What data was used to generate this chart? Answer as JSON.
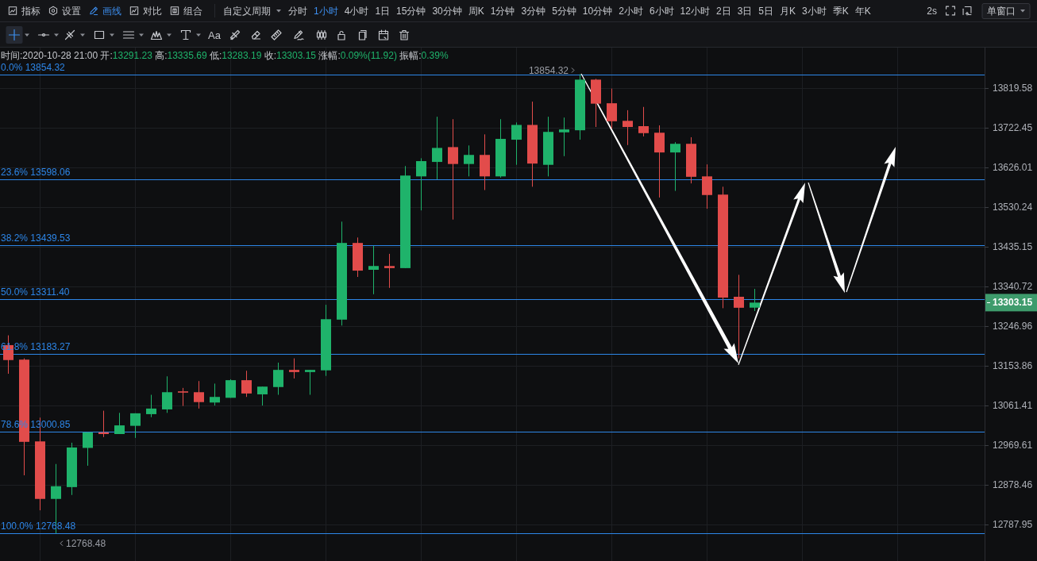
{
  "chart_data": {
    "type": "candlestick",
    "subtitle": "时间:2020-10-28 21:00 开:13291.23 高:13335.69 低:13283.19 收:13303.15 涨幅:0.09%(11.92) 振幅:0.39%",
    "categories": [
      null,
      null,
      null,
      null,
      null,
      null,
      null,
      null,
      null,
      null,
      null,
      null,
      null,
      null,
      null,
      null,
      null,
      null,
      null,
      null,
      null,
      null,
      null,
      null,
      null,
      null,
      null,
      null,
      null,
      null,
      null,
      null,
      null,
      null,
      null,
      null,
      null,
      null,
      null,
      null,
      null,
      null,
      null,
      null,
      null,
      null,
      null,
      null,
      null,
      null,
      null,
      null,
      null,
      null,
      null,
      null,
      null,
      null,
      null,
      null,
      null,
      null
    ],
    "ohlc": [
      [
        13203,
        13226,
        13136,
        13168
      ],
      [
        13169,
        13172,
        12901,
        12978
      ],
      [
        12979,
        13034,
        12821,
        12847
      ],
      [
        12847,
        12927,
        12768.48,
        12876
      ],
      [
        12874,
        12976,
        12856,
        12965
      ],
      [
        12964,
        13000,
        12923,
        13000
      ],
      [
        13000,
        13050,
        12989,
        12996
      ],
      [
        12996,
        13045,
        12996,
        13016
      ],
      [
        13015,
        13044,
        12987,
        13044
      ],
      [
        13042,
        13087,
        13035,
        13055
      ],
      [
        13053,
        13130,
        13045,
        13093
      ],
      [
        13095,
        13103,
        13061,
        13092
      ],
      [
        13093,
        13119,
        13055,
        13070
      ],
      [
        13069,
        13113,
        13062,
        13082
      ],
      [
        13080,
        13123,
        13080,
        13121
      ],
      [
        13121,
        13143,
        13082,
        13090
      ],
      [
        13088,
        13106,
        13062,
        13106
      ],
      [
        13105,
        13162,
        13087,
        13145
      ],
      [
        13145,
        13172,
        13125,
        13140
      ],
      [
        13140,
        13145,
        13087,
        13145
      ],
      [
        13144,
        13298,
        13131,
        13264
      ],
      [
        13263,
        13496,
        13249,
        13445
      ],
      [
        13445,
        13458,
        13364,
        13379
      ],
      [
        13381,
        13438,
        13323,
        13390
      ],
      [
        13390,
        13419,
        13338,
        13385
      ],
      [
        13385,
        13630,
        13385,
        13607
      ],
      [
        13605,
        13649,
        13523,
        13642
      ],
      [
        13640,
        13750,
        13598,
        13674
      ],
      [
        13676,
        13744,
        13501,
        13635
      ],
      [
        13635,
        13680,
        13605,
        13657
      ],
      [
        13657,
        13707,
        13572,
        13605
      ],
      [
        13605,
        13744,
        13602,
        13696
      ],
      [
        13694,
        13736,
        13633,
        13730
      ],
      [
        13730,
        13787,
        13580,
        13636
      ],
      [
        13633,
        13750,
        13605,
        13713
      ],
      [
        13712,
        13748,
        13654,
        13719
      ],
      [
        13717,
        13854.32,
        13694,
        13841
      ],
      [
        13841,
        13843,
        13725,
        13782
      ],
      [
        13783,
        13819,
        13721,
        13739
      ],
      [
        13740,
        13766,
        13681,
        13725
      ],
      [
        13727,
        13774,
        13702,
        13710
      ],
      [
        13711,
        13729,
        13554,
        13663
      ],
      [
        13663,
        13688,
        13570,
        13684
      ],
      [
        13684,
        13700,
        13588,
        13604
      ],
      [
        13605,
        13634,
        13527,
        13560
      ],
      [
        13561,
        13580,
        13290,
        13315
      ],
      [
        13317,
        13369,
        13172,
        13291
      ],
      [
        13291.23,
        13335.69,
        13283.19,
        13303.15
      ],
      null,
      null,
      null,
      null,
      null,
      null,
      null,
      null,
      null,
      null,
      null,
      null,
      null,
      null
    ],
    "colors": [
      "#e24c4b",
      "#e24c4b",
      "#e24c4b",
      "#1fb36b",
      "#1fb36b",
      "#1fb36b",
      "#e24c4b",
      "#1fb36b",
      "#1fb36b",
      "#1fb36b",
      "#1fb36b",
      "#e24c4b",
      "#e24c4b",
      "#1fb36b",
      "#1fb36b",
      "#e24c4b",
      "#1fb36b",
      "#1fb36b",
      "#e24c4b",
      "#1fb36b",
      "#1fb36b",
      "#1fb36b",
      "#e24c4b",
      "#1fb36b",
      "#e24c4b",
      "#1fb36b",
      "#1fb36b",
      "#1fb36b",
      "#e24c4b",
      "#1fb36b",
      "#e24c4b",
      "#1fb36b",
      "#1fb36b",
      "#e24c4b",
      "#1fb36b",
      "#1fb36b",
      "#1fb36b",
      "#e24c4b",
      "#e24c4b",
      "#e24c4b",
      "#e24c4b",
      "#e24c4b",
      "#1fb36b",
      "#e24c4b",
      "#e24c4b",
      "#e24c4b",
      "#e24c4b",
      "#1fb36b",
      null,
      null,
      null,
      null,
      null,
      null,
      null,
      null,
      null,
      null,
      null,
      null,
      null,
      null
    ],
    "ylim": [
      12706,
      13920
    ],
    "yticks": [
      13819.58,
      13722.45,
      13626.01,
      13530.24,
      13435.15,
      13340.72,
      13246.96,
      13153.86,
      13061.41,
      12969.61,
      12878.46,
      12787.95
    ],
    "log": true,
    "grid": true,
    "tick_labels": "y",
    "ref_lines": [
      {
        "axis": "y",
        "value": 13854.32,
        "label": "0.0% 13854.32",
        "color": "#2d86e8"
      },
      {
        "axis": "y",
        "value": 13598.06,
        "label": "23.6% 13598.06",
        "color": "#2d86e8"
      },
      {
        "axis": "y",
        "value": 13439.53,
        "label": "38.2% 13439.53",
        "color": "#2d86e8"
      },
      {
        "axis": "y",
        "value": 13311.4,
        "label": "50.0% 13311.40",
        "color": "#2d86e8"
      },
      {
        "axis": "y",
        "value": 13183.27,
        "label": "61.8% 13183.27",
        "color": "#2d86e8"
      },
      {
        "axis": "y",
        "value": 13000.85,
        "label": "78.6% 13000.85",
        "color": "#2d86e8"
      },
      {
        "axis": "y",
        "value": 12768.48,
        "label": "100.0% 12768.48",
        "color": "#2d86e8"
      }
    ],
    "annotations": [
      "指标",
      "设置",
      "画线",
      "对比",
      "组合",
      "自定义周期",
      "分时",
      "1小时",
      "4小时",
      "1日",
      "15分钟",
      "30分钟",
      "周K",
      "1分钟",
      "3分钟",
      "5分钟",
      "10分钟",
      "2小时",
      "6小时",
      "12小时",
      "2日",
      "3日",
      "5日",
      "月K",
      "3小时",
      "季K",
      "年K",
      "2s",
      "单窗口",
      "Aa",
      "13303.15",
      {
        "text": "13854.32",
        "y": 13854.32
      },
      {
        "text": "12768.48",
        "y": 12768.48
      }
    ]
  }
}
